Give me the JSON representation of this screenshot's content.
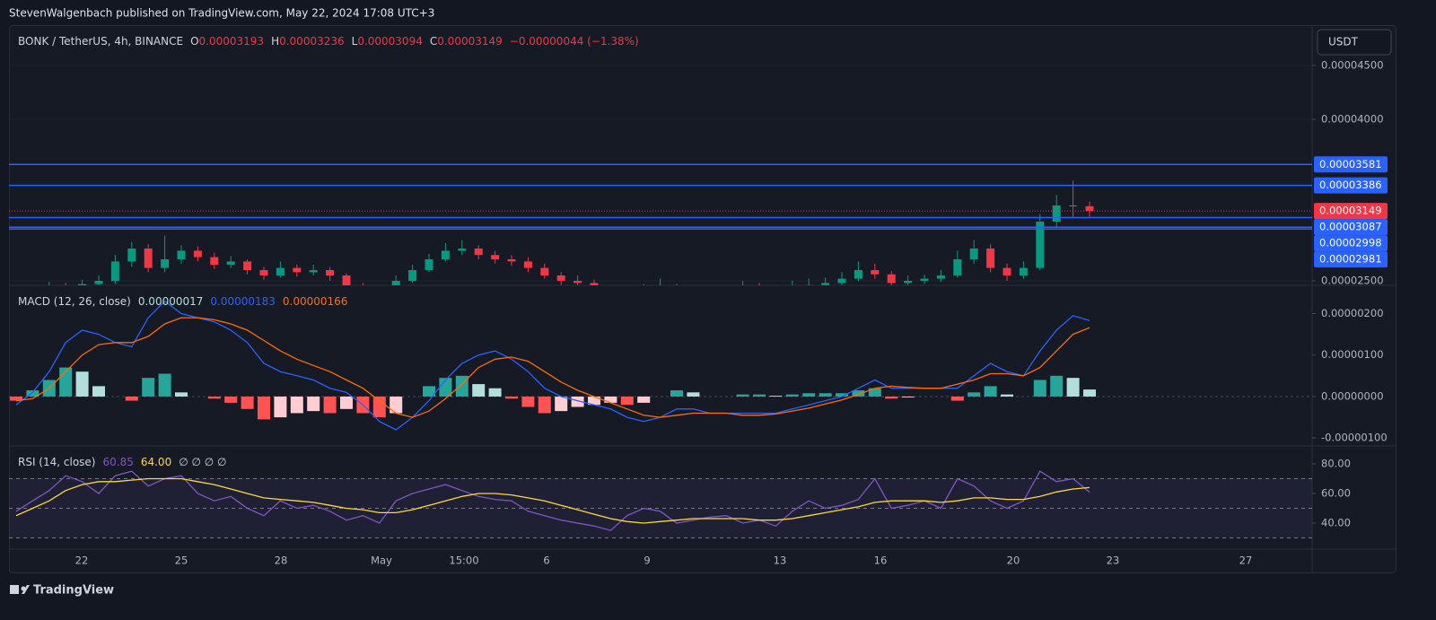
{
  "header": {
    "byline": "StevenWalgenbach published on TradingView.com, May 22, 2024 17:08 UTC+3"
  },
  "footer": {
    "brand": "TradingView"
  },
  "time_axis": {
    "labels": [
      "22",
      "25",
      "28",
      "May",
      "15:00",
      "6",
      "9",
      "13",
      "16",
      "20",
      "23",
      "27"
    ]
  },
  "chart_data": [
    {
      "type": "candlestick",
      "title": "BONK / TetherUS, 4h, BINANCE",
      "legend_values": [
        "O",
        "0.00003193",
        "H",
        "0.00003236",
        "L",
        "0.00003094",
        "C",
        "0.00003149",
        "−0.00000044 (−1.38%)"
      ],
      "currency": "USDT",
      "up_color": "#089981",
      "down_color": "#f23645",
      "candles": [
        [
          2.38e-05,
          2.43e-05,
          2.35e-05,
          2.4e-05
        ],
        [
          2.4e-05,
          2.46e-05,
          2.37e-05,
          2.42e-05
        ],
        [
          2.42e-05,
          2.49e-05,
          2.39e-05,
          2.45e-05
        ],
        [
          2.45e-05,
          2.48e-05,
          2.4e-05,
          2.43e-05
        ],
        [
          2.43e-05,
          2.51e-05,
          2.4e-05,
          2.47e-05
        ],
        [
          2.47e-05,
          2.55e-05,
          2.44e-05,
          2.5e-05
        ],
        [
          2.5e-05,
          2.74e-05,
          2.47e-05,
          2.68e-05
        ],
        [
          2.68e-05,
          2.86e-05,
          2.63e-05,
          2.8e-05
        ],
        [
          2.8e-05,
          2.84e-05,
          2.58e-05,
          2.62e-05
        ],
        [
          2.62e-05,
          2.92e-05,
          2.58e-05,
          2.7e-05
        ],
        [
          2.7e-05,
          2.83e-05,
          2.66e-05,
          2.78e-05
        ],
        [
          2.78e-05,
          2.82e-05,
          2.68e-05,
          2.72e-05
        ],
        [
          2.72e-05,
          2.76e-05,
          2.61e-05,
          2.65e-05
        ],
        [
          2.65e-05,
          2.73e-05,
          2.62e-05,
          2.68e-05
        ],
        [
          2.68e-05,
          2.7e-05,
          2.56e-05,
          2.6e-05
        ],
        [
          2.6e-05,
          2.63e-05,
          2.51e-05,
          2.55e-05
        ],
        [
          2.55e-05,
          2.68e-05,
          2.53e-05,
          2.62e-05
        ],
        [
          2.62e-05,
          2.65e-05,
          2.54e-05,
          2.58e-05
        ],
        [
          2.58e-05,
          2.65e-05,
          2.55e-05,
          2.6e-05
        ],
        [
          2.6e-05,
          2.63e-05,
          2.5e-05,
          2.55e-05
        ],
        [
          2.55e-05,
          2.57e-05,
          2.41e-05,
          2.45e-05
        ],
        [
          2.45e-05,
          2.48e-05,
          2.35e-05,
          2.4e-05
        ],
        [
          2.4e-05,
          2.43e-05,
          2.33e-05,
          2.38e-05
        ],
        [
          2.38e-05,
          2.55e-05,
          2.36e-05,
          2.5e-05
        ],
        [
          2.5e-05,
          2.65e-05,
          2.48e-05,
          2.6e-05
        ],
        [
          2.6e-05,
          2.75e-05,
          2.58e-05,
          2.7e-05
        ],
        [
          2.7e-05,
          2.85e-05,
          2.68e-05,
          2.78e-05
        ],
        [
          2.78e-05,
          2.88e-05,
          2.74e-05,
          2.8e-05
        ],
        [
          2.8e-05,
          2.83e-05,
          2.7e-05,
          2.74e-05
        ],
        [
          2.74e-05,
          2.78e-05,
          2.66e-05,
          2.7e-05
        ],
        [
          2.7e-05,
          2.74e-05,
          2.64e-05,
          2.68e-05
        ],
        [
          2.68e-05,
          2.72e-05,
          2.58e-05,
          2.62e-05
        ],
        [
          2.62e-05,
          2.66e-05,
          2.52e-05,
          2.55e-05
        ],
        [
          2.55e-05,
          2.58e-05,
          2.46e-05,
          2.5e-05
        ],
        [
          2.5e-05,
          2.55e-05,
          2.44e-05,
          2.48e-05
        ],
        [
          2.48e-05,
          2.51e-05,
          2.36e-05,
          2.4e-05
        ],
        [
          2.4e-05,
          2.43e-05,
          2.31e-05,
          2.35e-05
        ],
        [
          2.35e-05,
          2.42e-05,
          2.32e-05,
          2.38e-05
        ],
        [
          2.38e-05,
          2.47e-05,
          2.36e-05,
          2.42e-05
        ],
        [
          2.42e-05,
          2.52e-05,
          2.4e-05,
          2.45e-05
        ],
        [
          2.45e-05,
          2.47e-05,
          2.36e-05,
          2.4e-05
        ],
        [
          2.4e-05,
          2.44e-05,
          2.35e-05,
          2.38e-05
        ],
        [
          2.38e-05,
          2.41e-05,
          2.32e-05,
          2.36e-05
        ],
        [
          2.36e-05,
          2.45e-05,
          2.34e-05,
          2.4e-05
        ],
        [
          2.4e-05,
          2.5e-05,
          2.38e-05,
          2.45e-05
        ],
        [
          2.45e-05,
          2.48e-05,
          2.39e-05,
          2.42e-05
        ],
        [
          2.42e-05,
          2.46e-05,
          2.36e-05,
          2.4e-05
        ],
        [
          2.4e-05,
          2.5e-05,
          2.38e-05,
          2.44e-05
        ],
        [
          2.44e-05,
          2.52e-05,
          2.42e-05,
          2.46e-05
        ],
        [
          2.46e-05,
          2.53e-05,
          2.43e-05,
          2.48e-05
        ],
        [
          2.48e-05,
          2.58e-05,
          2.45e-05,
          2.52e-05
        ],
        [
          2.52e-05,
          2.68e-05,
          2.5e-05,
          2.6e-05
        ],
        [
          2.6e-05,
          2.66e-05,
          2.52e-05,
          2.56e-05
        ],
        [
          2.56e-05,
          2.59e-05,
          2.45e-05,
          2.48e-05
        ],
        [
          2.48e-05,
          2.55e-05,
          2.45e-05,
          2.5e-05
        ],
        [
          2.5e-05,
          2.56e-05,
          2.47e-05,
          2.52e-05
        ],
        [
          2.52e-05,
          2.6e-05,
          2.49e-05,
          2.55e-05
        ],
        [
          2.55e-05,
          2.78e-05,
          2.53e-05,
          2.7e-05
        ],
        [
          2.7e-05,
          2.88e-05,
          2.66e-05,
          2.8e-05
        ],
        [
          2.8e-05,
          2.84e-05,
          2.58e-05,
          2.62e-05
        ],
        [
          2.62e-05,
          2.66e-05,
          2.5e-05,
          2.55e-05
        ],
        [
          2.55e-05,
          2.68e-05,
          2.52e-05,
          2.62e-05
        ],
        [
          2.62e-05,
          3.12e-05,
          2.6e-05,
          3.05e-05
        ],
        [
          3.05e-05,
          3.3e-05,
          3e-05,
          3.2e-05
        ],
        [
          3.2e-05,
          3.43e-05,
          3.08e-05,
          3.193e-05
        ],
        [
          3.193e-05,
          3.236e-05,
          3.094e-05,
          3.149e-05
        ]
      ],
      "ylim": [
        2.4583e-05,
        4.875e-05
      ],
      "yticks": [
        {
          "value": 4.5e-05,
          "label": "0.00004500"
        },
        {
          "value": 4e-05,
          "label": "0.00004000"
        },
        {
          "value": 2.5e-05,
          "label": "0.00002500"
        }
      ],
      "grid": true,
      "level_color": "#2962ff",
      "levels": [
        {
          "value": 3.581e-05,
          "label": "0.00003581"
        },
        {
          "value": 3.386e-05,
          "label": "0.00003386"
        },
        {
          "value": 3.087e-05,
          "label": "0.00003087"
        },
        {
          "value": 2.998e-05,
          "label": "0.00002998"
        },
        {
          "value": 2.981e-05,
          "label": "0.00002981"
        }
      ],
      "last_price": {
        "value": 3.149e-05,
        "label": "0.00003149",
        "color": "#f23645"
      }
    },
    {
      "type": "macd",
      "title": "MACD (12, 26, close)",
      "legend_values": [
        "0.00000017",
        "0.00000183",
        "0.00000166"
      ],
      "histogram": {
        "colors": [
          "#26a69a",
          "#b2dfdb",
          "#ff5252",
          "#ffcdd2"
        ],
        "values": [
          -1e-07,
          1.5e-07,
          4e-07,
          7e-07,
          6e-07,
          2.5e-07,
          0.0,
          -1e-07,
          4.5e-07,
          5.5e-07,
          1e-07,
          0.0,
          -5e-08,
          -1.5e-07,
          -3e-07,
          -5.5e-07,
          -5e-07,
          -4e-07,
          -3.5e-07,
          -4e-07,
          -3e-07,
          -4e-07,
          -5e-07,
          -4e-07,
          0.0,
          2.5e-07,
          4.5e-07,
          5e-07,
          3e-07,
          2e-07,
          -5e-08,
          -2.5e-07,
          -4e-07,
          -3.5e-07,
          -2.5e-07,
          -2e-07,
          -1.5e-07,
          -2e-07,
          -1.5e-07,
          0.0,
          1.5e-07,
          1e-07,
          0.0,
          0.0,
          5e-08,
          5e-08,
          2e-08,
          5e-08,
          8e-08,
          8e-08,
          8e-08,
          1.5e-07,
          2e-07,
          -5e-08,
          -2e-08,
          0.0,
          0.0,
          -1e-07,
          1e-07,
          2.5e-07,
          5e-08,
          0.0,
          4e-07,
          5e-07,
          4.5e-07,
          1.7e-07
        ]
      },
      "series": [
        {
          "color": "#2962ff",
          "values": [
            -2e-07,
            1e-07,
            6e-07,
            1.3e-06,
            1.6e-06,
            1.5e-06,
            1.3e-06,
            1.2e-06,
            1.9e-06,
            2.3e-06,
            2e-06,
            1.9e-06,
            1.8e-06,
            1.6e-06,
            1.3e-06,
            8e-07,
            6e-07,
            5e-07,
            4e-07,
            2e-07,
            1e-07,
            -2e-07,
            -6e-07,
            -8e-07,
            -5e-07,
            -1e-07,
            4e-07,
            8e-07,
            1e-06,
            1.1e-06,
            9e-07,
            6e-07,
            2e-07,
            0.0,
            -1e-07,
            -2e-07,
            -3e-07,
            -5e-07,
            -6e-07,
            -5e-07,
            -3e-07,
            -3e-07,
            -4e-07,
            -4e-07,
            -4e-07,
            -4e-07,
            -4e-07,
            -3e-07,
            -2e-07,
            -1e-07,
            0.0,
            2e-07,
            4e-07,
            2e-07,
            2e-07,
            2e-07,
            2e-07,
            2e-07,
            5e-07,
            8e-07,
            6e-07,
            5e-07,
            1.1e-06,
            1.6e-06,
            1.95e-06,
            1.83e-06
          ]
        },
        {
          "color": "#ff6d00",
          "values": [
            -1e-07,
            -5e-08,
            2e-07,
            6e-07,
            1e-06,
            1.25e-06,
            1.3e-06,
            1.3e-06,
            1.45e-06,
            1.75e-06,
            1.9e-06,
            1.9e-06,
            1.85e-06,
            1.75e-06,
            1.6e-06,
            1.35e-06,
            1.1e-06,
            9e-07,
            7.5e-07,
            6e-07,
            4e-07,
            2e-07,
            -1e-07,
            -4e-07,
            -5e-07,
            -3.5e-07,
            -5e-08,
            3e-07,
            7e-07,
            9e-07,
            9.5e-07,
            8.5e-07,
            6e-07,
            3.5e-07,
            1.5e-07,
            0.0,
            -1.5e-07,
            -3e-07,
            -4.5e-07,
            -5e-07,
            -4.5e-07,
            -4e-07,
            -4e-07,
            -4e-07,
            -4.5e-07,
            -4.5e-07,
            -4.2e-07,
            -3.5e-07,
            -2.8e-07,
            -1.8e-07,
            -8e-08,
            5e-08,
            2e-07,
            2.5e-07,
            2.2e-07,
            2e-07,
            2e-07,
            3e-07,
            4e-07,
            5.5e-07,
            5.5e-07,
            5e-07,
            7e-07,
            1.1e-06,
            1.5e-06,
            1.66e-06
          ]
        }
      ],
      "ylim": [
        -1.19e-06,
        2.68e-06
      ],
      "yticks": [
        {
          "value": 2e-06,
          "label": "0.00000200"
        },
        {
          "value": 1e-06,
          "label": "0.00000100"
        },
        {
          "value": 0,
          "label": "0.00000000"
        },
        {
          "value": -1e-06,
          "label": "-0.00000100"
        }
      ],
      "grid": false
    },
    {
      "type": "rsi",
      "title": "RSI (14, close)",
      "legend_values": [
        "60.85",
        "64.00",
        "∅ ∅ ∅ ∅"
      ],
      "series": [
        {
          "color": "#7e57c2",
          "values": [
            48,
            55,
            62,
            72,
            68,
            60,
            72,
            75,
            65,
            70,
            72,
            60,
            55,
            58,
            50,
            45,
            55,
            50,
            52,
            48,
            42,
            45,
            40,
            55,
            60,
            63,
            66,
            62,
            58,
            56,
            55,
            48,
            45,
            42,
            40,
            38,
            35,
            45,
            50,
            48,
            40,
            42,
            44,
            45,
            40,
            42,
            38,
            48,
            55,
            50,
            52,
            56,
            70,
            50,
            52,
            55,
            50,
            70,
            65,
            55,
            50,
            55,
            75,
            68,
            70,
            60.85
          ]
        },
        {
          "color": "#fdd835",
          "values": [
            45,
            50,
            55,
            62,
            66,
            68,
            68,
            69,
            70,
            70,
            70,
            68,
            66,
            63,
            60,
            57,
            56,
            55,
            54,
            52,
            50,
            49,
            47,
            47,
            49,
            52,
            55,
            58,
            60,
            60,
            59,
            57,
            55,
            52,
            49,
            46,
            43,
            41,
            40,
            41,
            42,
            43,
            43,
            43,
            43,
            42,
            42,
            43,
            45,
            47,
            49,
            51,
            54,
            55,
            55,
            55,
            54,
            55,
            57,
            57,
            56,
            56,
            58,
            61,
            63,
            64
          ]
        }
      ],
      "bands": [
        70,
        50,
        30
      ],
      "band_fill": "rgba(126,87,194,0.10)",
      "ylim": [
        22.4,
        92.1
      ],
      "yticks": [
        {
          "value": 80,
          "label": "80.00"
        },
        {
          "value": 60,
          "label": "60.00"
        },
        {
          "value": 40,
          "label": "40.00"
        }
      ],
      "grid": false
    }
  ]
}
